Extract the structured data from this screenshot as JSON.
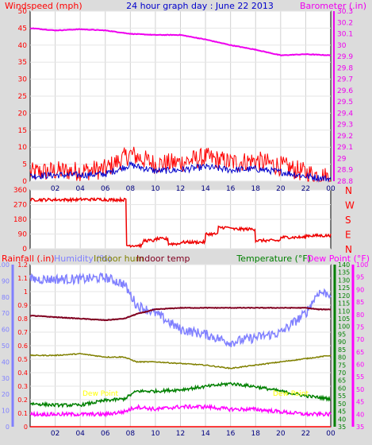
{
  "colors": {
    "background": "#dcdcdc",
    "plot": "#ffffff",
    "wind_speed": "#ff0000",
    "wind_avg": "#0000cc",
    "barometer": "#ee00ee",
    "direction": "#ee0000",
    "humidity": "#8080ff",
    "indoor_hum": "#808000",
    "indoor_temp": "#800020",
    "temperature": "#008000",
    "dew_point": "#ff00ff",
    "rainfall": "#ff0000",
    "title": "#0000cc",
    "annotation": "#ffff00"
  },
  "header": {
    "windspeed_label": "Windspeed (mph)",
    "title": "24 hour graph day : June 22 2013",
    "barometer_label": "Barometer (.in)"
  },
  "x_ticks": [
    "02",
    "04",
    "06",
    "08",
    "10",
    "12",
    "14",
    "16",
    "18",
    "20",
    "22",
    "00"
  ],
  "panel1": {
    "left_ticks": [
      "50",
      "45",
      "40",
      "35",
      "30",
      "25",
      "20",
      "15",
      "10",
      "5",
      "0"
    ],
    "right_ticks": [
      "30.3",
      "30.2",
      "30.1",
      "30",
      "29.9",
      "29.8",
      "29.7",
      "29.6",
      "29.5",
      "29.4",
      "29.3",
      "29.2",
      "29.1",
      "29",
      "28.9",
      "28.8"
    ]
  },
  "panel2": {
    "left_ticks": [
      "360",
      "270",
      "180",
      "90",
      "0"
    ],
    "compass": [
      "N",
      "W",
      "S",
      "E",
      "N"
    ]
  },
  "panel3": {
    "rain_label": "Rainfall (.in)",
    "hum_label": "Humidity (%)",
    "inhum_label": "Indoor hum",
    "intemp_label": "Indoor temp",
    "temp_label": "Temperature (°F)",
    "dew_label": "Dew Point (°F)",
    "hum_ticks": [
      "100",
      "90",
      "80",
      "70",
      "60",
      "50",
      "40",
      "30",
      "20",
      "10",
      "0"
    ],
    "rain_ticks": [
      "1.2",
      "1.1",
      "1",
      "0.9",
      "0.8",
      "0.7",
      "0.6",
      "0.5",
      "0.4",
      "0.3",
      "0.2",
      "0.1",
      "0"
    ],
    "temp_ticks": [
      "140",
      "135",
      "130",
      "125",
      "120",
      "115",
      "110",
      "105",
      "100",
      "95",
      "90",
      "85",
      "80",
      "75",
      "70",
      "65",
      "60",
      "55",
      "50",
      "45",
      "40",
      "35"
    ],
    "dew_ticks": [
      "100",
      "95",
      "90",
      "85",
      "80",
      "75",
      "70",
      "65",
      "60",
      "55",
      "50",
      "45",
      "40",
      "35"
    ],
    "annotation_1": "Dew Point",
    "annotation_2": "Dew Point"
  },
  "chart_data": [
    {
      "type": "line",
      "title": "24 hour graph day : June 22 2013",
      "x_unit": "hour of day",
      "x": [
        0,
        2,
        4,
        6,
        8,
        10,
        12,
        14,
        16,
        18,
        20,
        22,
        24
      ],
      "series": [
        {
          "name": "Windspeed (mph)",
          "axis": "left",
          "ylim": [
            0,
            50
          ],
          "values": [
            2.5,
            3,
            3,
            3.5,
            8,
            5,
            5.5,
            7,
            5.5,
            6,
            4.5,
            2.5,
            1
          ]
        },
        {
          "name": "Barometer (.in)",
          "axis": "right",
          "ylim": [
            28.8,
            30.3
          ],
          "values": [
            30.15,
            30.13,
            30.14,
            30.13,
            30.1,
            30.09,
            30.09,
            30.05,
            30.0,
            29.96,
            29.91,
            29.92,
            29.91
          ]
        }
      ]
    },
    {
      "type": "line",
      "title": "",
      "x_unit": "hour of day",
      "ylim": [
        0,
        360
      ],
      "x": [
        0,
        2,
        4,
        6,
        7.6,
        7.7,
        9,
        10,
        11,
        12,
        14,
        15,
        16,
        18,
        20,
        22,
        24
      ],
      "series": [
        {
          "values": [
            300,
            300,
            302,
            300,
            300,
            20,
            50,
            60,
            30,
            40,
            90,
            130,
            120,
            50,
            70,
            80,
            100
          ]
        }
      ]
    },
    {
      "type": "line",
      "title": "",
      "x_unit": "hour of day",
      "x": [
        0,
        2,
        4,
        6,
        7.5,
        8.5,
        10,
        12,
        14,
        16,
        18,
        20,
        22,
        23,
        24
      ],
      "series": [
        {
          "name": "Humidity (%)",
          "axis": "humidity",
          "ylim": [
            0,
            100
          ],
          "values": [
            91,
            91,
            91,
            92,
            88,
            75,
            70,
            60,
            57,
            52,
            55,
            58,
            70,
            83,
            82
          ]
        },
        {
          "name": "Indoor hum",
          "axis": "humidity",
          "ylim": [
            0,
            100
          ],
          "values": [
            44,
            44,
            45,
            43,
            43,
            40,
            40,
            39,
            38,
            36,
            38,
            40,
            42,
            43,
            44
          ]
        },
        {
          "name": "Indoor temp",
          "axis": "temperature",
          "ylim": [
            35,
            140
          ],
          "values": [
            107,
            106,
            105,
            104,
            105,
            108,
            111,
            112,
            112,
            112,
            112,
            112,
            112,
            111,
            111
          ]
        },
        {
          "name": "Temperature (°F)",
          "axis": "temperature",
          "ylim": [
            35,
            140
          ],
          "values": [
            50,
            49,
            49,
            52,
            53,
            58,
            58,
            59,
            61,
            63,
            61,
            58,
            55,
            54,
            53
          ]
        },
        {
          "name": "Dew Point (°F)",
          "axis": "dew_point",
          "ylim": [
            35,
            100
          ],
          "values": [
            40,
            40,
            40,
            40,
            41,
            43,
            42,
            43,
            43,
            42,
            42,
            41,
            40,
            40,
            40
          ]
        },
        {
          "name": "Rainfall (.in)",
          "axis": "rain",
          "ylim": [
            0,
            1.2
          ],
          "values": [
            0,
            0,
            0,
            0,
            0,
            0,
            0,
            0,
            0,
            0,
            0,
            0,
            0,
            0,
            0
          ]
        }
      ]
    }
  ]
}
